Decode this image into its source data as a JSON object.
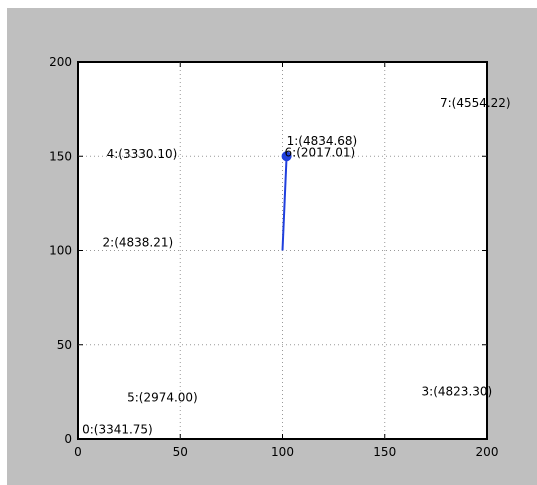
{
  "chart_data": {
    "type": "scatter",
    "xlim": [
      0,
      200
    ],
    "ylim": [
      0,
      200
    ],
    "xticks": [
      0,
      50,
      100,
      150,
      200
    ],
    "yticks": [
      0,
      50,
      100,
      150,
      200
    ],
    "grid": true,
    "points": [
      {
        "x": 2,
        "y": 3,
        "label": "0:(3341.75)"
      },
      {
        "x": 102,
        "y": 156,
        "label": "1:(4834.68)"
      },
      {
        "x": 12,
        "y": 102,
        "label": "2:(4838.21)"
      },
      {
        "x": 168,
        "y": 23,
        "label": "3:(4823.30)"
      },
      {
        "x": 14,
        "y": 149,
        "label": "4:(3330.10)"
      },
      {
        "x": 24,
        "y": 20,
        "label": "5:(2974.00)"
      },
      {
        "x": 101,
        "y": 150,
        "label": "6:(2017.01)"
      },
      {
        "x": 177,
        "y": 176,
        "label": "7:(4554.22)"
      }
    ],
    "path": {
      "x": [
        100,
        102
      ],
      "y": [
        100,
        150
      ],
      "color": "#1f3fdd"
    },
    "marker": {
      "x": 102,
      "y": 150,
      "color": "#1f3fdd"
    }
  }
}
